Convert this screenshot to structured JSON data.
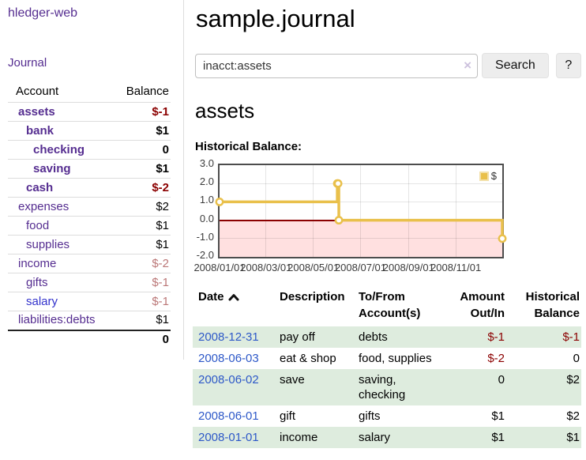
{
  "sidebar": {
    "app_title": "hledger-web",
    "journal_link": "Journal",
    "accounts_table": {
      "headers": {
        "account": "Account",
        "balance": "Balance"
      },
      "rows": [
        {
          "account": "assets",
          "balance": "$-1"
        },
        {
          "account": "bank",
          "balance": "$1"
        },
        {
          "account": "checking",
          "balance": "0"
        },
        {
          "account": "saving",
          "balance": "$1"
        },
        {
          "account": "cash",
          "balance": "$-2"
        },
        {
          "account": "expenses",
          "balance": "$2"
        },
        {
          "account": "food",
          "balance": "$1"
        },
        {
          "account": "supplies",
          "balance": "$1"
        },
        {
          "account": "income",
          "balance": "$-2"
        },
        {
          "account": "gifts",
          "balance": "$-1"
        },
        {
          "account": "salary",
          "balance": "$-1"
        },
        {
          "account": "liabilities:debts",
          "balance": "$1"
        }
      ],
      "total": "0"
    }
  },
  "header": {
    "title": "sample.journal"
  },
  "search": {
    "value": "inacct:assets",
    "clear_icon": "×",
    "button_label": "Search",
    "help_label": "?"
  },
  "account_page": {
    "heading": "assets",
    "chart_label": "Historical Balance:"
  },
  "chart_data": {
    "type": "line",
    "style": "step",
    "title": "Historical Balance",
    "x_range": [
      "2008-01-01",
      "2008-12-31"
    ],
    "ylim": [
      -2,
      3
    ],
    "grid": true,
    "legend_position": "top-right",
    "negative_region_shaded": true,
    "yticks": [
      {
        "label": "3.0",
        "value": 3
      },
      {
        "label": "2.0",
        "value": 2
      },
      {
        "label": "1.0",
        "value": 1
      },
      {
        "label": "0.0",
        "value": 0
      },
      {
        "label": "-1.0",
        "value": -1
      },
      {
        "label": "-2.0",
        "value": -2
      }
    ],
    "xticks": [
      {
        "label": "2008/01/01",
        "date": "2008-01-01"
      },
      {
        "label": "2008/03/01",
        "date": "2008-03-01"
      },
      {
        "label": "2008/05/01",
        "date": "2008-05-01"
      },
      {
        "label": "2008/07/01",
        "date": "2008-07-01"
      },
      {
        "label": "2008/09/01",
        "date": "2008-09-01"
      },
      {
        "label": "2008/11/01",
        "date": "2008-11-01"
      }
    ],
    "series": [
      {
        "name": "$",
        "points": [
          [
            "2008-01-01",
            1
          ],
          [
            "2008-06-01",
            2
          ],
          [
            "2008-06-02",
            2
          ],
          [
            "2008-06-03",
            0
          ],
          [
            "2008-12-31",
            -1
          ]
        ]
      }
    ]
  },
  "register_table": {
    "headers": {
      "date": "Date",
      "description": "Description",
      "accounts": "To/From Account(s)",
      "amount": "Amount Out/In",
      "balance": "Historical Balance"
    },
    "rows": [
      {
        "date": "2008-12-31",
        "description": "pay off",
        "accounts": "debts",
        "amount": "$-1",
        "balance": "$-1"
      },
      {
        "date": "2008-06-03",
        "description": "eat & shop",
        "accounts": "food, supplies",
        "amount": "$-2",
        "balance": "0"
      },
      {
        "date": "2008-06-02",
        "description": "save",
        "accounts": "saving, checking",
        "amount": "0",
        "balance": "$2"
      },
      {
        "date": "2008-06-01",
        "description": "gift",
        "accounts": "gifts",
        "amount": "$1",
        "balance": "$2"
      },
      {
        "date": "2008-01-01",
        "description": "income",
        "accounts": "salary",
        "amount": "$1",
        "balance": "$1"
      }
    ]
  },
  "colors": {
    "link_purple": "#552d90",
    "link_blue_unvisited": "#3333cc",
    "date_link_blue": "#2d58c8",
    "negative_red": "#8b0000",
    "negative_pale_red": "#bb7777",
    "row_green": "#deecde",
    "chart_line_gold": "#e9c04b",
    "chart_negative_fill": "#ffe0e0",
    "zero_line_red": "#8b0000"
  }
}
